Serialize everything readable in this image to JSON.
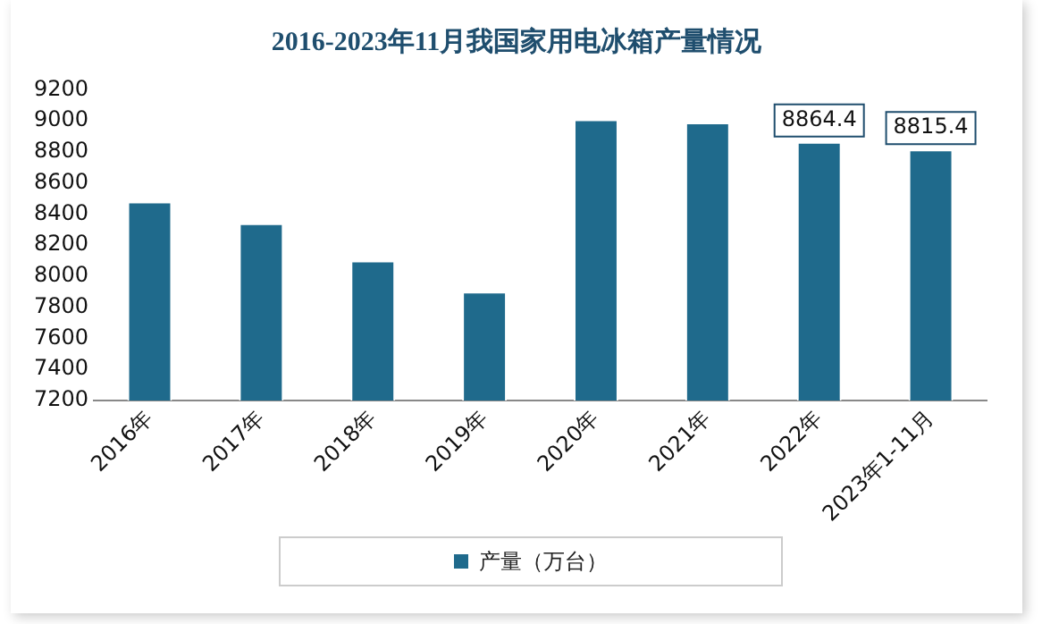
{
  "chart_data": {
    "type": "bar",
    "title": "2016-2023年11月我国家用电冰箱产量情况",
    "categories": [
      "2016年",
      "2017年",
      "2018年",
      "2019年",
      "2020年",
      "2021年",
      "2022年",
      "2023年1-11月"
    ],
    "series": [
      {
        "name": "产量（万台）",
        "color": "#1f6a8c",
        "values": [
          8480,
          8340,
          8100,
          7900,
          9010,
          8990,
          8864.4,
          8815.4
        ],
        "value_labels": [
          null,
          null,
          null,
          null,
          null,
          null,
          "8864.4",
          "8815.4"
        ]
      }
    ],
    "ylim": [
      7200,
      9200
    ],
    "yticks": [
      7200,
      7400,
      7600,
      7800,
      8000,
      8200,
      8400,
      8600,
      8800,
      9000,
      9200
    ],
    "grid": false,
    "legend": "bottom"
  }
}
